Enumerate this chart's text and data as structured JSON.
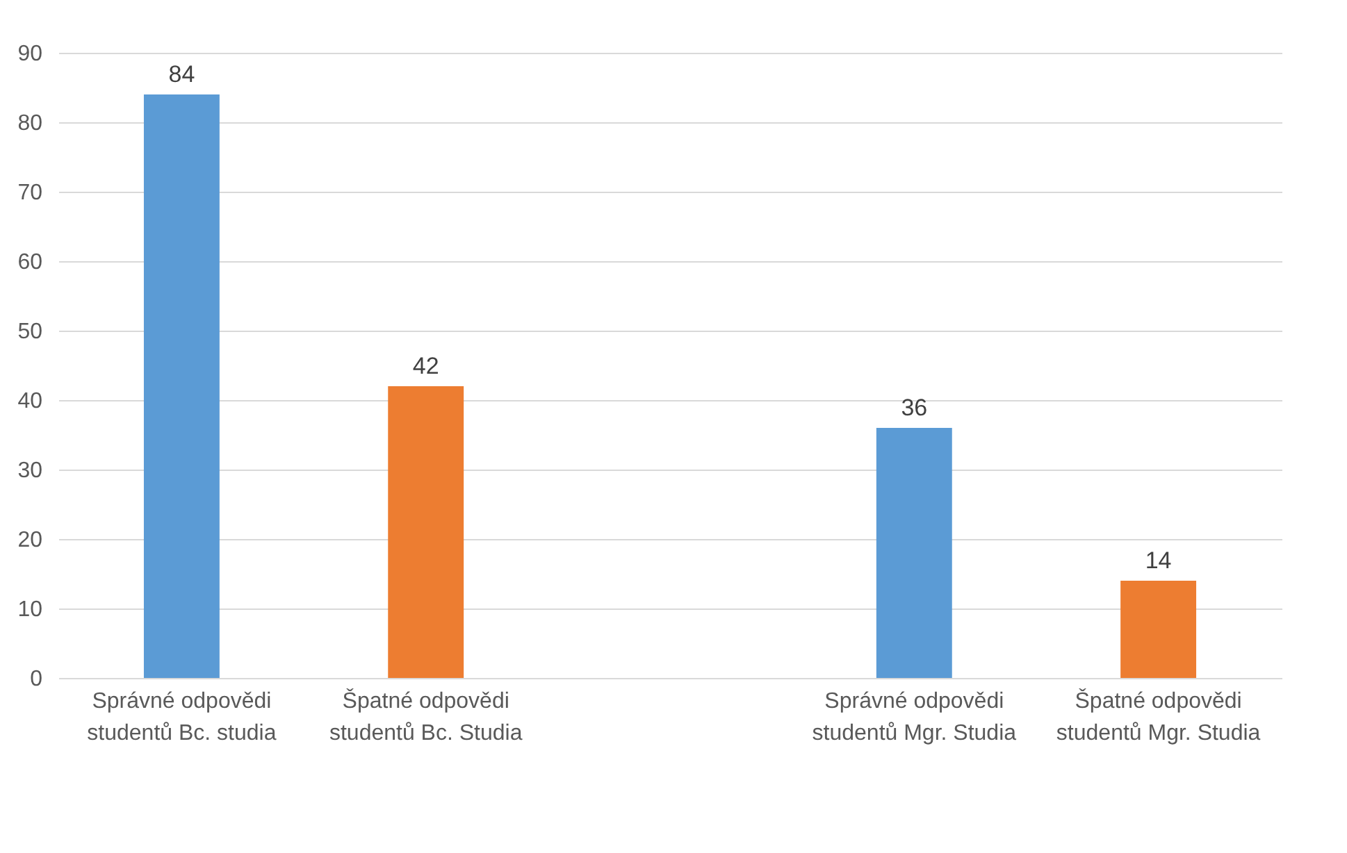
{
  "chart_data": {
    "type": "bar",
    "categories": [
      "Správné odpovědi studentů Bc. studia",
      "Špatné odpovědi studentů Bc. Studia",
      null,
      "Správné odpovědi studentů Mgr. Studia",
      "Špatné odpovědi studentů Mgr. Studia"
    ],
    "values": [
      84,
      42,
      null,
      36,
      14
    ],
    "colors": [
      "#5b9bd5",
      "#ed7d31",
      "#5b9bd5",
      "#5b9bd5",
      "#ed7d31"
    ],
    "ylim": [
      0,
      90
    ],
    "yticks": [
      0,
      10,
      20,
      30,
      40,
      50,
      60,
      70,
      80,
      90
    ],
    "grid": "y",
    "data_labels": true
  }
}
